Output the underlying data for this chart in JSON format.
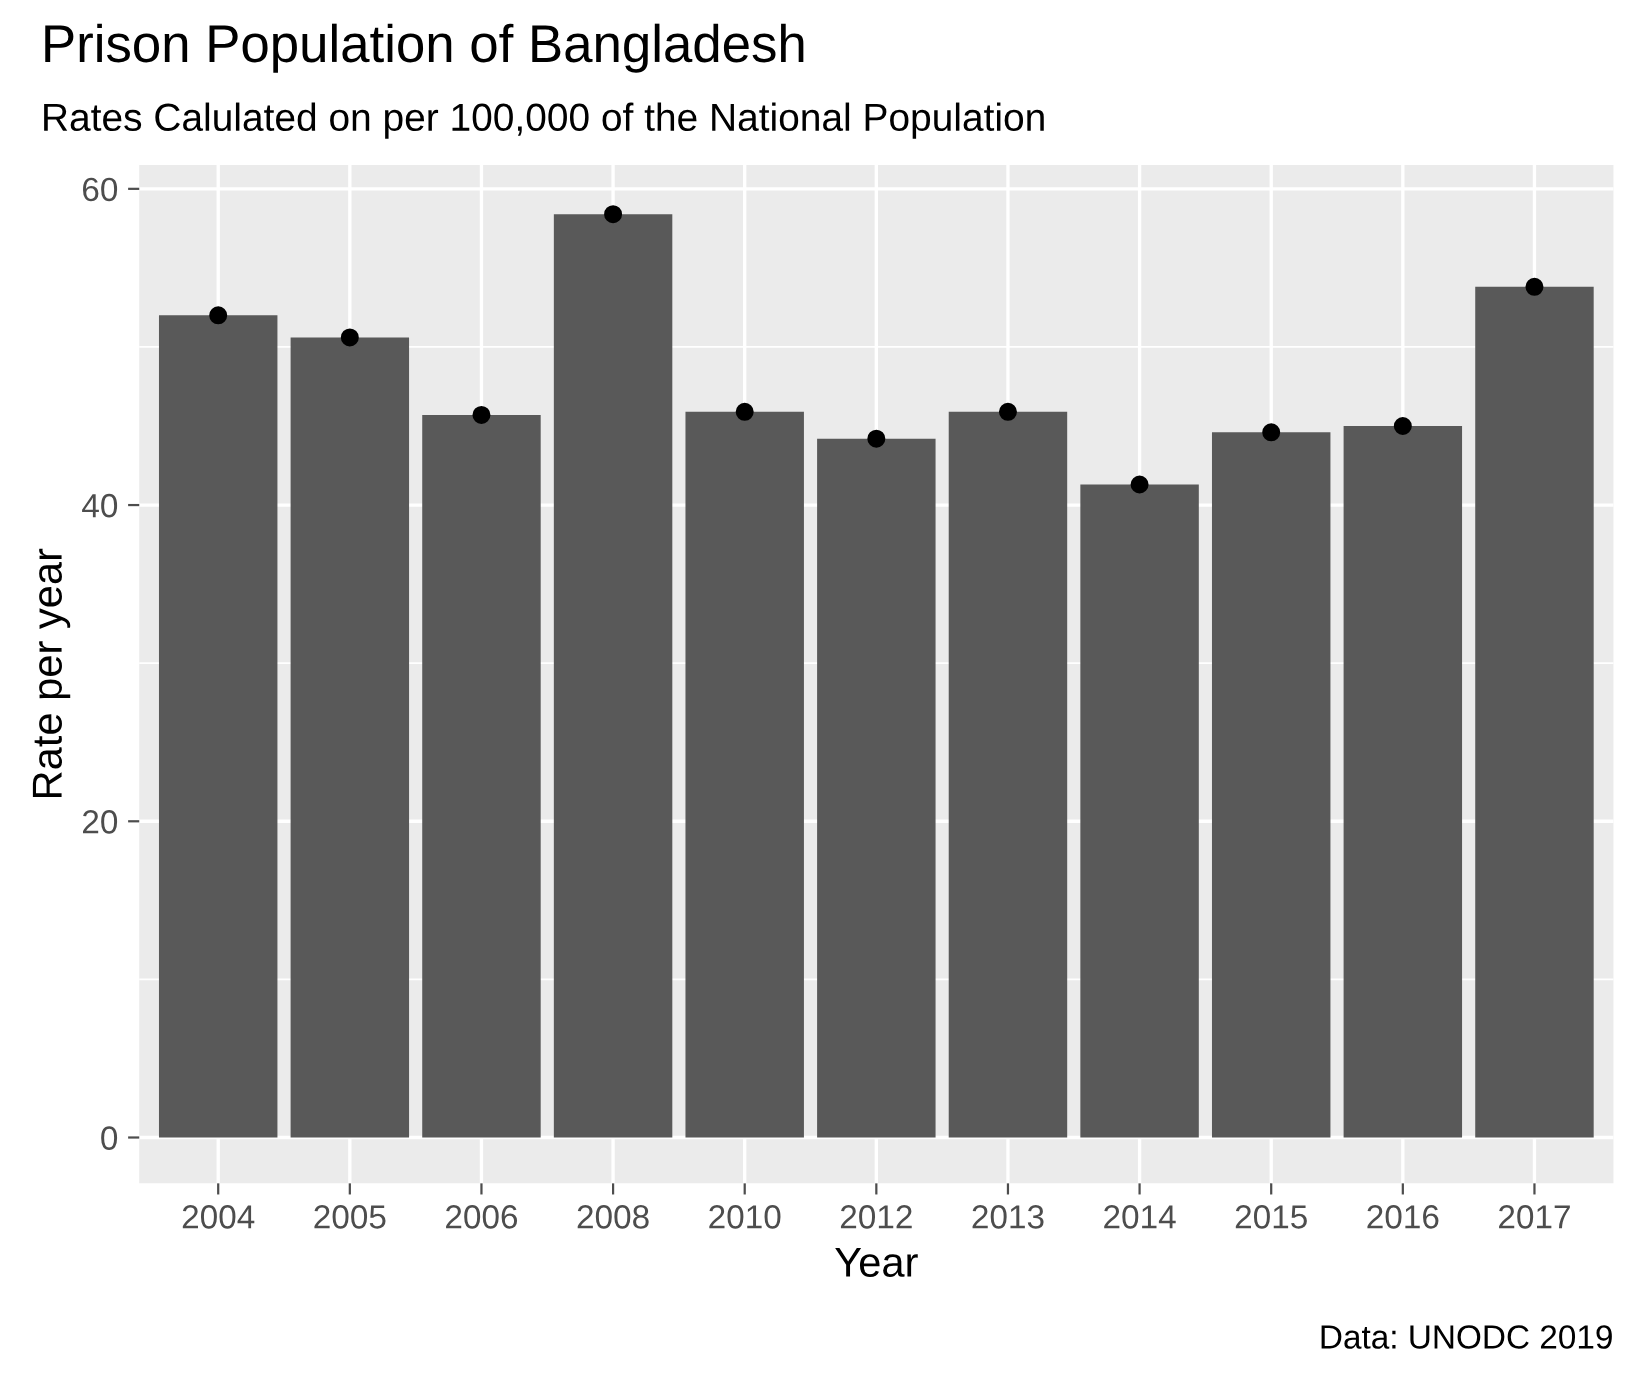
{
  "chart_data": {
    "type": "bar",
    "title": "Prison Population of Bangladesh",
    "subtitle": "Rates Calulated on per 100,000 of the National Population",
    "xlabel": "Year",
    "ylabel": "Rate per year",
    "annotations": [
      "Data: UNODC 2019"
    ],
    "categories": [
      "2004",
      "2005",
      "2006",
      "2008",
      "2010",
      "2012",
      "2013",
      "2014",
      "2015",
      "2016",
      "2017"
    ],
    "series": [
      {
        "color": "#595959",
        "values": [
          52.0,
          50.6,
          45.7,
          58.4,
          45.9,
          44.2,
          45.9,
          41.3,
          44.6,
          45.0,
          53.8
        ]
      },
      {
        "type": "scatter",
        "color": "#000000",
        "marker": "circle",
        "values": [
          52.0,
          50.6,
          45.7,
          58.4,
          45.9,
          44.2,
          45.9,
          41.3,
          44.6,
          45.0,
          53.8
        ]
      }
    ],
    "ylim": [
      -2.9,
      61.5
    ],
    "yticks": [
      0,
      20,
      40,
      60
    ],
    "grid": true
  }
}
